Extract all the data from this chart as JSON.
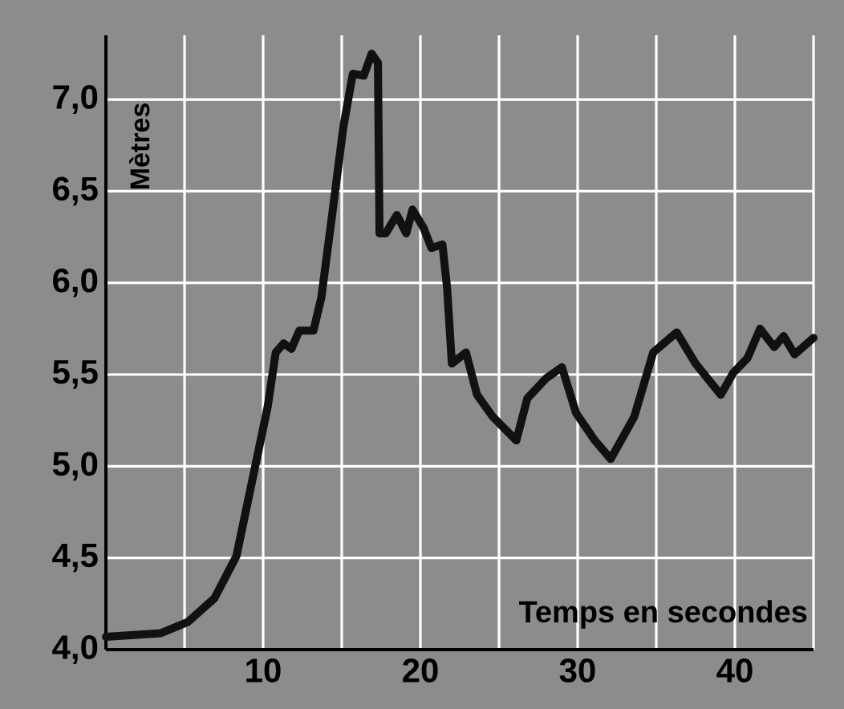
{
  "chart_data": {
    "type": "line",
    "xlabel": "Temps en secondes",
    "ylabel": "Mètres",
    "x": [
      0,
      3.5,
      5.2,
      6.9,
      8.3,
      9.3,
      10.3,
      10.8,
      11.3,
      11.8,
      12.3,
      13.2,
      13.7,
      14.4,
      15.1,
      15.7,
      16.4,
      16.9,
      17.3,
      17.4,
      17.8,
      18.5,
      19.1,
      19.5,
      20.2,
      20.7,
      21.4,
      21.7,
      22.0,
      22.9,
      23.6,
      24.6,
      26.1,
      26.8,
      28.0,
      29.0,
      29.9,
      31.1,
      32.1,
      33.6,
      34.8,
      36.3,
      37.5,
      39.1,
      39.9,
      40.8,
      41.6,
      42.5,
      43.1,
      43.8,
      45.0
    ],
    "values": [
      4.07,
      4.09,
      4.15,
      4.28,
      4.51,
      4.92,
      5.33,
      5.62,
      5.67,
      5.64,
      5.74,
      5.74,
      5.92,
      6.38,
      6.85,
      7.14,
      7.13,
      7.25,
      7.2,
      6.27,
      6.27,
      6.37,
      6.27,
      6.4,
      6.3,
      6.19,
      6.21,
      5.97,
      5.56,
      5.62,
      5.39,
      5.27,
      5.14,
      5.37,
      5.48,
      5.54,
      5.29,
      5.14,
      5.04,
      5.27,
      5.62,
      5.73,
      5.56,
      5.39,
      5.51,
      5.59,
      5.75,
      5.65,
      5.71,
      5.61,
      5.7
    ],
    "color": "#111111",
    "xlim": [
      0,
      45
    ],
    "ylim": [
      4,
      7.35
    ],
    "xticks": [
      {
        "value": 5,
        "label": null
      },
      10,
      {
        "value": 15,
        "label": null
      },
      20,
      {
        "value": 25,
        "label": null
      },
      30,
      {
        "value": 35,
        "label": null
      },
      40,
      {
        "value": 45,
        "label": null
      }
    ],
    "yticks": [
      {
        "value": 4,
        "label": "4,0"
      },
      {
        "value": 4.5,
        "label": "4,5"
      },
      {
        "value": 5,
        "label": "5,0"
      },
      {
        "value": 5.5,
        "label": "5,5"
      },
      {
        "value": 6,
        "label": "6,0"
      },
      {
        "value": 6.5,
        "label": "6,5"
      },
      {
        "value": 7,
        "label": "7,0"
      }
    ],
    "grid": true,
    "marker": "none",
    "line_style": "solid"
  }
}
